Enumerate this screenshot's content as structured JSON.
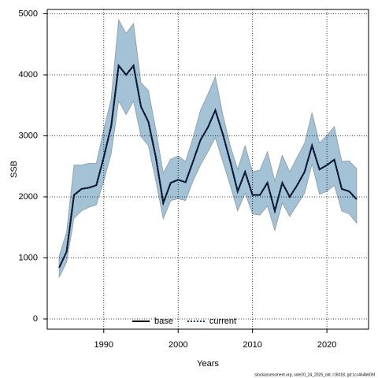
{
  "chart_data": {
    "type": "line",
    "xlabel": "Years",
    "ylabel": "SSB",
    "footnote": "stockassessment.org, sole20_24_2025_old, r16018, git:1cc464b606f",
    "x": [
      1984,
      1985,
      1986,
      1987,
      1988,
      1989,
      1990,
      1991,
      1992,
      1993,
      1994,
      1995,
      1996,
      1997,
      1998,
      1999,
      2000,
      2001,
      2002,
      2003,
      2004,
      2005,
      2006,
      2007,
      2008,
      2009,
      2010,
      2011,
      2012,
      2013,
      2014,
      2015,
      2016,
      2017,
      2018,
      2019,
      2020,
      2021,
      2022,
      2023,
      2024
    ],
    "series": [
      {
        "name": "base",
        "color": "#000000",
        "dash": false,
        "values": [
          840,
          1100,
          2030,
          2130,
          2150,
          2190,
          2650,
          3160,
          4150,
          4000,
          4150,
          3480,
          3230,
          2650,
          1900,
          2230,
          2280,
          2240,
          2580,
          2930,
          3140,
          3420,
          3030,
          2580,
          2090,
          2410,
          2030,
          2030,
          2230,
          1770,
          2230,
          2000,
          2190,
          2410,
          2840,
          2450,
          2520,
          2610,
          2130,
          2090,
          1960
        ]
      },
      {
        "name": "current",
        "color": "#08306b",
        "dash": true,
        "values": [
          840,
          1100,
          2030,
          2130,
          2150,
          2190,
          2650,
          3160,
          4150,
          4000,
          4150,
          3480,
          3230,
          2650,
          1900,
          2230,
          2280,
          2240,
          2580,
          2930,
          3140,
          3420,
          3030,
          2580,
          2090,
          2410,
          2030,
          2030,
          2230,
          1770,
          2230,
          2000,
          2190,
          2410,
          2840,
          2450,
          2520,
          2610,
          2130,
          2090,
          1960
        ]
      }
    ],
    "band": {
      "color": "#a3c2d5",
      "upper": [
        1030,
        1420,
        2520,
        2520,
        2550,
        2550,
        3100,
        3610,
        4900,
        4680,
        4840,
        3870,
        3740,
        3100,
        2390,
        2620,
        2670,
        2580,
        2970,
        3420,
        3680,
        3970,
        3350,
        2840,
        2450,
        2840,
        2410,
        2440,
        2740,
        2260,
        2680,
        2410,
        2650,
        2880,
        3380,
        2880,
        3010,
        3150,
        2580,
        2590,
        2460
      ],
      "lower": [
        680,
        930,
        1650,
        1770,
        1830,
        1870,
        2260,
        2710,
        3570,
        3350,
        3570,
        2990,
        2840,
        2260,
        1640,
        1940,
        1970,
        1940,
        2260,
        2520,
        2740,
        2970,
        2580,
        2190,
        1770,
        2060,
        1720,
        1700,
        1850,
        1450,
        1900,
        1680,
        1870,
        2060,
        2540,
        2040,
        2090,
        2190,
        1770,
        1720,
        1570
      ]
    },
    "xlim": [
      1982.4,
      2025.6
    ],
    "ylim": [
      -168,
      5071
    ],
    "xticks": [
      1990,
      2000,
      2010,
      2020
    ],
    "yticks": [
      0,
      1000,
      2000,
      3000,
      4000,
      5000
    ],
    "grid": true,
    "legend": "bottom"
  }
}
